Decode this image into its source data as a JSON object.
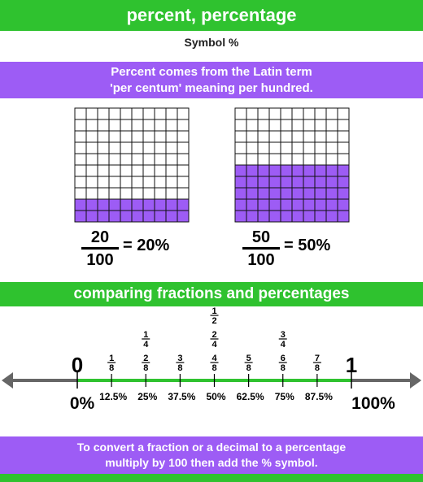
{
  "title": "percent, percentage",
  "symbol_line": "Symbol %",
  "intro": [
    "Percent comes from the Latin term",
    "'per centum' meaning per hundred."
  ],
  "grids": [
    {
      "rows": 10,
      "cols": 10,
      "filled_rows": 2,
      "fraction": {
        "num": "20",
        "den": "100"
      },
      "equals": "= 20%"
    },
    {
      "rows": 10,
      "cols": 10,
      "filled_rows": 5,
      "fraction": {
        "num": "50",
        "den": "100"
      },
      "equals": "= 50%"
    }
  ],
  "section_title": "comparing fractions and percentages",
  "number_line": {
    "start_label": "0",
    "end_label": "1",
    "start_percent": "0%",
    "end_percent": "100%",
    "ticks": [
      {
        "value": 0.125,
        "fractions": [
          [
            "1",
            "8"
          ]
        ],
        "percent": "12.5%"
      },
      {
        "value": 0.25,
        "fractions": [
          [
            "1",
            "4"
          ],
          [
            "2",
            "8"
          ]
        ],
        "percent": "25%"
      },
      {
        "value": 0.375,
        "fractions": [
          [
            "3",
            "8"
          ]
        ],
        "percent": "37.5%"
      },
      {
        "value": 0.5,
        "fractions": [
          [
            "1",
            "2"
          ],
          [
            "2",
            "4"
          ],
          [
            "4",
            "8"
          ]
        ],
        "percent": "50%"
      },
      {
        "value": 0.625,
        "fractions": [
          [
            "5",
            "8"
          ]
        ],
        "percent": "62.5%"
      },
      {
        "value": 0.75,
        "fractions": [
          [
            "3",
            "4"
          ],
          [
            "6",
            "8"
          ]
        ],
        "percent": "75%"
      },
      {
        "value": 0.875,
        "fractions": [
          [
            "7",
            "8"
          ]
        ],
        "percent": "87.5%"
      }
    ]
  },
  "conclusion": [
    "To convert a fraction or a decimal to a percentage",
    "multiply by 100 then add the % symbol."
  ],
  "colors": {
    "green": "#2fc22f",
    "purple": "#9d5cf5",
    "line_gray": "#666666"
  }
}
